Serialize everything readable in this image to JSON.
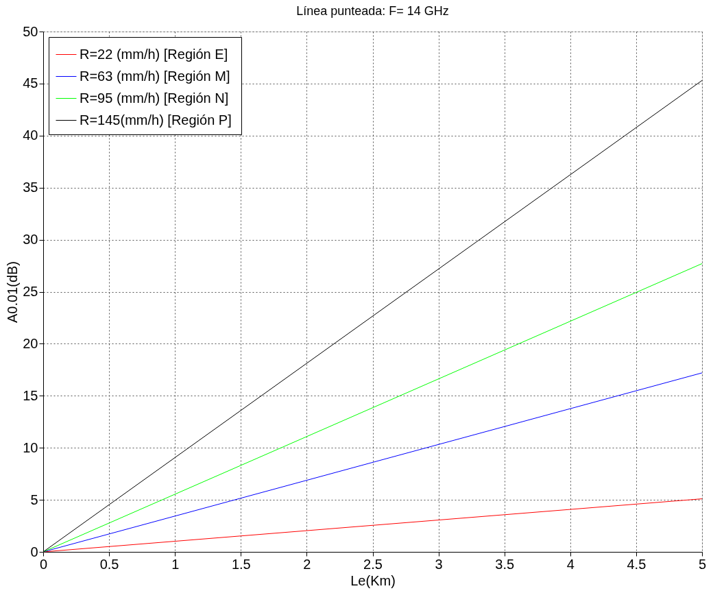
{
  "chart_data": {
    "type": "line",
    "title": "Línea punteada: F= 14 GHz",
    "xlabel": "Le(Km)",
    "ylabel": "A0.01(dB)",
    "x": [
      0,
      5
    ],
    "series": [
      {
        "name": "R=22 (mm/h)  [Región E]",
        "color": "#ff0000",
        "values": [
          0,
          5.1
        ]
      },
      {
        "name": "R=63 (mm/h)  [Región M]",
        "color": "#0000ff",
        "values": [
          0,
          17.2
        ]
      },
      {
        "name": "R=95 (mm/h)  [Región N]",
        "color": "#00ff00",
        "values": [
          0,
          27.7
        ]
      },
      {
        "name": "R=145(mm/h) [Región P]",
        "color": "#000000",
        "values": [
          0,
          45.3
        ]
      }
    ],
    "xlim": [
      0,
      5
    ],
    "xticks": [
      0,
      0.5,
      1,
      1.5,
      2,
      2.5,
      3,
      3.5,
      4,
      4.5,
      5
    ],
    "ylim": [
      0,
      50
    ],
    "yticks": [
      0,
      5,
      10,
      15,
      20,
      25,
      30,
      35,
      40,
      45,
      50
    ],
    "grid": true,
    "legend": "top left",
    "marker": "none",
    "line_style": "solid"
  }
}
